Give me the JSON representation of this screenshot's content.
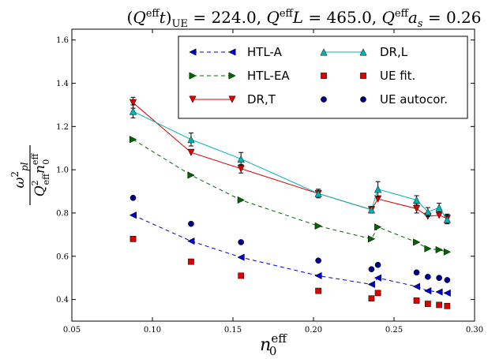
{
  "chart_data": {
    "type": "line",
    "title": "(Q^eff t)_UE = 224.0, Q^eff L = 465.0, Q^eff a_s = 0.26",
    "xlabel": "n_0^eff",
    "ylabel": "ω_pl^2 / (Q_eff^2 n_0^eff)",
    "xlim": [
      0.05,
      0.3
    ],
    "ylim": [
      0.3,
      1.65
    ],
    "xticks": [
      0.05,
      0.1,
      0.15,
      0.2,
      0.25,
      0.3
    ],
    "xtick_labels": [
      "0.05",
      "0.10",
      "0.15",
      "0.20",
      "0.25",
      "0.30"
    ],
    "yticks": [
      0.4,
      0.6,
      0.8,
      1.0,
      1.2,
      1.4,
      1.6
    ],
    "ytick_labels": [
      "0.4",
      "0.6",
      "0.8",
      "1.0",
      "1.2",
      "1.4",
      "1.6"
    ],
    "grid": false,
    "legend_position": "top-right",
    "series": [
      {
        "name": "HTL-A",
        "color": "#0000cc",
        "marker": "triangle-left",
        "line": "dashed",
        "x": [
          0.088,
          0.124,
          0.155,
          0.203,
          0.236,
          0.24,
          0.264,
          0.271,
          0.278,
          0.283
        ],
        "y": [
          0.79,
          0.67,
          0.595,
          0.51,
          0.47,
          0.5,
          0.46,
          0.44,
          0.435,
          0.43
        ]
      },
      {
        "name": "HTL-EA",
        "color": "#006600",
        "marker": "triangle-right",
        "line": "dashed",
        "x": [
          0.088,
          0.124,
          0.155,
          0.203,
          0.236,
          0.24,
          0.264,
          0.271,
          0.278,
          0.283
        ],
        "y": [
          1.14,
          0.975,
          0.86,
          0.74,
          0.68,
          0.735,
          0.665,
          0.635,
          0.63,
          0.62
        ]
      },
      {
        "name": "DR,T",
        "color": "#dd0000",
        "marker": "triangle-down",
        "line": "solid",
        "x": [
          0.088,
          0.124,
          0.155,
          0.203,
          0.236,
          0.24,
          0.264,
          0.271,
          0.278,
          0.283
        ],
        "y": [
          1.31,
          1.08,
          1.005,
          0.89,
          0.815,
          0.865,
          0.82,
          0.785,
          0.79,
          0.775
        ],
        "yerr": [
          0.025,
          0.0,
          0.02,
          0.0,
          0.0,
          0.0,
          0.02,
          0.0,
          0.0,
          0.02
        ]
      },
      {
        "name": "DR,L",
        "color": "#00b3b3",
        "marker": "triangle-up",
        "line": "solid",
        "x": [
          0.088,
          0.124,
          0.155,
          0.203,
          0.236,
          0.24,
          0.264,
          0.271,
          0.278,
          0.283
        ],
        "y": [
          1.27,
          1.14,
          1.05,
          0.89,
          0.815,
          0.91,
          0.86,
          0.805,
          0.825,
          0.77
        ],
        "yerr": [
          0.03,
          0.03,
          0.03,
          0.02,
          0.015,
          0.035,
          0.02,
          0.02,
          0.02,
          0.02
        ]
      },
      {
        "name": "UE fit.",
        "color": "#dd0000",
        "marker": "square",
        "line": "none",
        "x": [
          0.088,
          0.124,
          0.155,
          0.203,
          0.236,
          0.24,
          0.264,
          0.271,
          0.278,
          0.283
        ],
        "y": [
          0.68,
          0.575,
          0.51,
          0.44,
          0.405,
          0.43,
          0.395,
          0.38,
          0.375,
          0.37
        ]
      },
      {
        "name": "UE autocor.",
        "color": "#000088",
        "marker": "circle",
        "line": "none",
        "x": [
          0.088,
          0.124,
          0.155,
          0.203,
          0.236,
          0.24,
          0.264,
          0.271,
          0.278,
          0.283
        ],
        "y": [
          0.87,
          0.75,
          0.665,
          0.58,
          0.54,
          0.56,
          0.525,
          0.505,
          0.5,
          0.49
        ]
      }
    ]
  }
}
